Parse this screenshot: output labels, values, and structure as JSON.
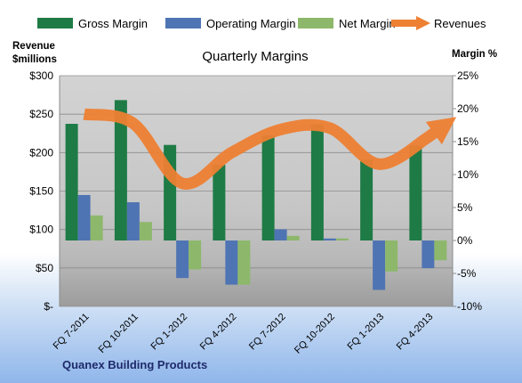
{
  "chart_data": {
    "type": "bar",
    "title": "Quarterly Margins",
    "ylabel_left": "Revenue $millions",
    "ylabel_right": "Margin %",
    "categories": [
      "FQ 7-2011",
      "FQ 10-2011",
      "FQ 1-2012",
      "FQ 4-2012",
      "FQ 7-2012",
      "FQ 10-2012",
      "FQ 1-2013",
      "FQ 4-2013"
    ],
    "y_left": {
      "lim": [
        0,
        300
      ],
      "ticks": [
        "$-",
        "$50",
        "$100",
        "$150",
        "$200",
        "$250",
        "$300"
      ]
    },
    "y_right": {
      "lim": [
        -10,
        25
      ],
      "ticks": [
        "-10%",
        "-5%",
        "0%",
        "5%",
        "10%",
        "15%",
        "20%",
        "25%"
      ]
    },
    "series": [
      {
        "name": "Gross Margin",
        "type": "bar",
        "axis": "right",
        "color": "#1e7b45",
        "values": [
          17.7,
          21.3,
          14.5,
          11.5,
          15.9,
          17.6,
          12.3,
          14.4
        ]
      },
      {
        "name": "Operating Margin",
        "type": "bar",
        "axis": "right",
        "color": "#4f74b3",
        "values": [
          6.9,
          5.8,
          -5.7,
          -6.7,
          1.7,
          0.3,
          -7.5,
          -4.2
        ]
      },
      {
        "name": "Net Margin",
        "type": "bar",
        "axis": "right",
        "color": "#8db86b",
        "values": [
          3.8,
          2.8,
          -4.4,
          -6.7,
          0.7,
          0.3,
          -4.7,
          -3.0
        ]
      },
      {
        "name": "Revenues",
        "type": "line",
        "axis": "left",
        "color": "#ee8033",
        "values": [
          250,
          238,
          160,
          200,
          230,
          232,
          185,
          220
        ]
      }
    ],
    "grid": true,
    "legend": "top",
    "footer": "Quanex Building Products"
  }
}
